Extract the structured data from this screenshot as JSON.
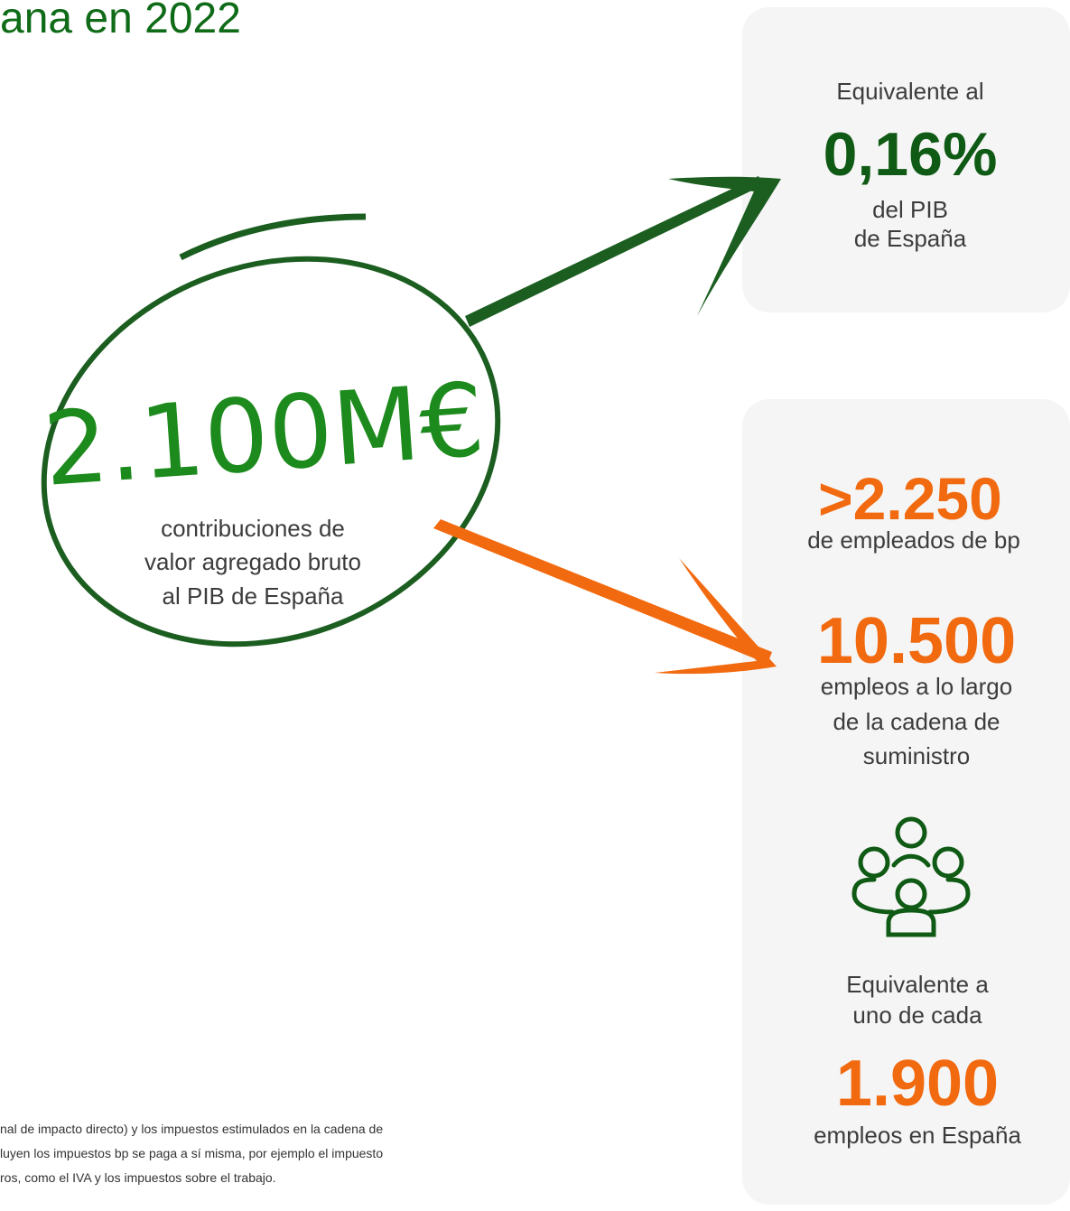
{
  "header": {
    "title": "ana en 2022"
  },
  "gdp_card": {
    "lead": "Equivalente al",
    "value": "0,16%",
    "lines": [
      "del PIB",
      "de España"
    ]
  },
  "center": {
    "value": "2.100M€",
    "lines": [
      "contribuciones de",
      "valor agregado bruto",
      "al PIB de España"
    ]
  },
  "jobs_card": {
    "employees_value": ">2.250",
    "employees_label": "de empleados de bp",
    "supply_value": "10.500",
    "supply_lines": [
      "empleos a lo largo",
      "de la cadena de",
      "suministro"
    ],
    "ratio_lines": [
      "Equivalente a",
      "uno de cada"
    ],
    "ratio_value": "1.900",
    "ratio_label": "empleos en España"
  },
  "footnote": {
    "lines": [
      "nal de impacto directo) y los impuestos estimulados en la cadena de",
      "luyen los impuestos bp se paga a sí misma, por ejemplo el impuesto",
      "ros, como el IVA y los impuestos sobre el trabajo."
    ]
  }
}
